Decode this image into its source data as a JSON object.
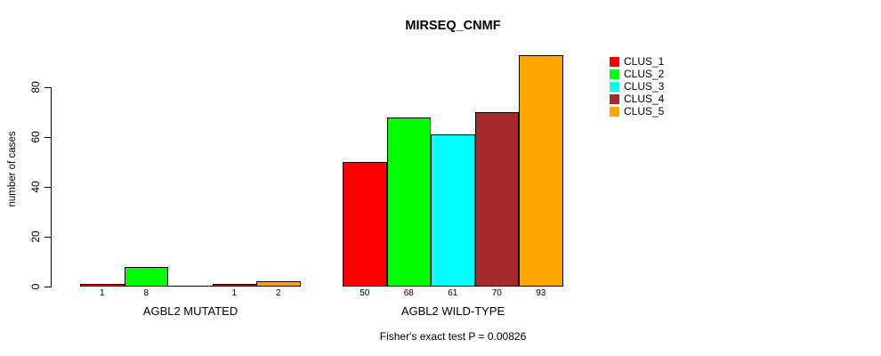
{
  "chart_data": {
    "type": "bar",
    "title": "MIRSEQ_CNMF",
    "ylabel": "number of cases",
    "xlabel": "",
    "categories": [
      "AGBL2 MUTATED",
      "AGBL2 WILD-TYPE"
    ],
    "series": [
      {
        "name": "CLUS_1",
        "color": "#FF0000",
        "values": [
          1,
          50
        ]
      },
      {
        "name": "CLUS_2",
        "color": "#00FF00",
        "values": [
          8,
          68
        ]
      },
      {
        "name": "CLUS_3",
        "color": "#00FFFF",
        "values": [
          0,
          61
        ]
      },
      {
        "name": "CLUS_4",
        "color": "#A52A2A",
        "values": [
          1,
          70
        ]
      },
      {
        "name": "CLUS_5",
        "color": "#FFA500",
        "values": [
          2,
          93
        ]
      }
    ],
    "bar_value_labels": [
      [
        "1",
        "8",
        "",
        "1",
        "2"
      ],
      [
        "50",
        "68",
        "61",
        "70",
        "93"
      ]
    ],
    "yticks": [
      0,
      20,
      40,
      60,
      80
    ],
    "ylim": [
      0,
      93
    ],
    "grid": false,
    "legend_position": "right",
    "legend_entries": [
      "CLUS_1",
      "CLUS_2",
      "CLUS_3",
      "CLUS_4",
      "CLUS_5"
    ]
  },
  "footer": {
    "caption": "Fisher's exact test P = 0.00826"
  }
}
